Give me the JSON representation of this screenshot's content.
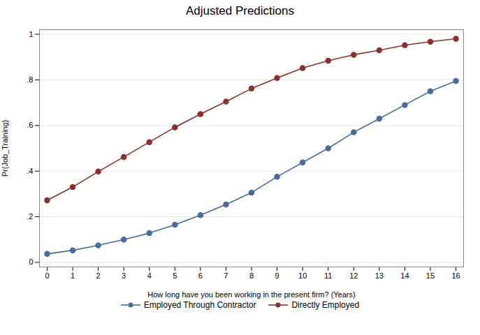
{
  "chart_data": {
    "type": "line",
    "title": "Adjusted Predictions",
    "xlabel": "How long have you been working in the present firm? (Years)",
    "ylabel": "Pr(Job_Training)",
    "x": [
      0,
      1,
      2,
      3,
      4,
      5,
      6,
      7,
      8,
      9,
      10,
      11,
      12,
      13,
      14,
      15,
      16
    ],
    "series": [
      {
        "name": "Employed Through Contractor",
        "color": "#476B9E",
        "marker": "circle",
        "values": [
          0.037,
          0.053,
          0.075,
          0.1,
          0.128,
          0.165,
          0.207,
          0.254,
          0.306,
          0.375,
          0.438,
          0.5,
          0.57,
          0.63,
          0.69,
          0.75,
          0.795
        ]
      },
      {
        "name": "Directly Employed",
        "color": "#8B3030",
        "marker": "circle",
        "values": [
          0.272,
          0.33,
          0.398,
          0.462,
          0.527,
          0.592,
          0.65,
          0.705,
          0.762,
          0.808,
          0.852,
          0.884,
          0.91,
          0.93,
          0.952,
          0.967,
          0.98
        ]
      }
    ],
    "xlim": [
      -0.3,
      16.3
    ],
    "xticks": [
      0,
      1,
      2,
      3,
      4,
      5,
      6,
      7,
      8,
      9,
      10,
      11,
      12,
      13,
      14,
      15,
      16
    ],
    "ylim": [
      -0.02,
      1.02
    ],
    "yticks": [
      0,
      {
        "value": 0.2,
        "label": ".2"
      },
      {
        "value": 0.4,
        "label": ".4"
      },
      {
        "value": 0.6,
        "label": ".6"
      },
      {
        "value": 0.8,
        "label": ".8"
      },
      1
    ],
    "grid": "y",
    "legend": "bottom"
  }
}
